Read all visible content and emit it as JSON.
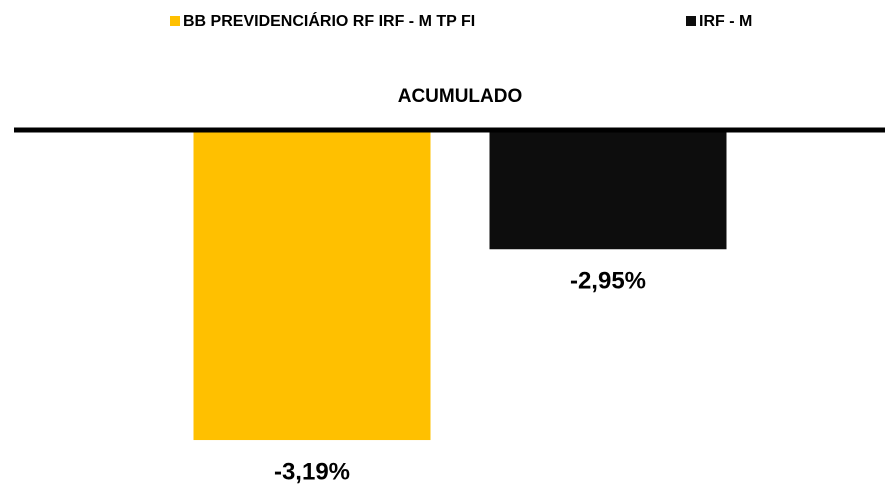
{
  "chart_data": {
    "type": "bar",
    "categories": [
      "ACUMULADO"
    ],
    "series": [
      {
        "name": "BB PREVIDENCIÁRIO RF IRF - M TP FI",
        "color": "#ffc000",
        "values": [
          -3.19
        ],
        "value_labels": [
          "-3,19%"
        ]
      },
      {
        "name": "IRF - M",
        "color": "#0d0d0d",
        "values": [
          -2.95
        ],
        "value_labels": [
          "-2,95%"
        ]
      }
    ],
    "ylim": [
      -3.2,
      -2.8
    ]
  }
}
